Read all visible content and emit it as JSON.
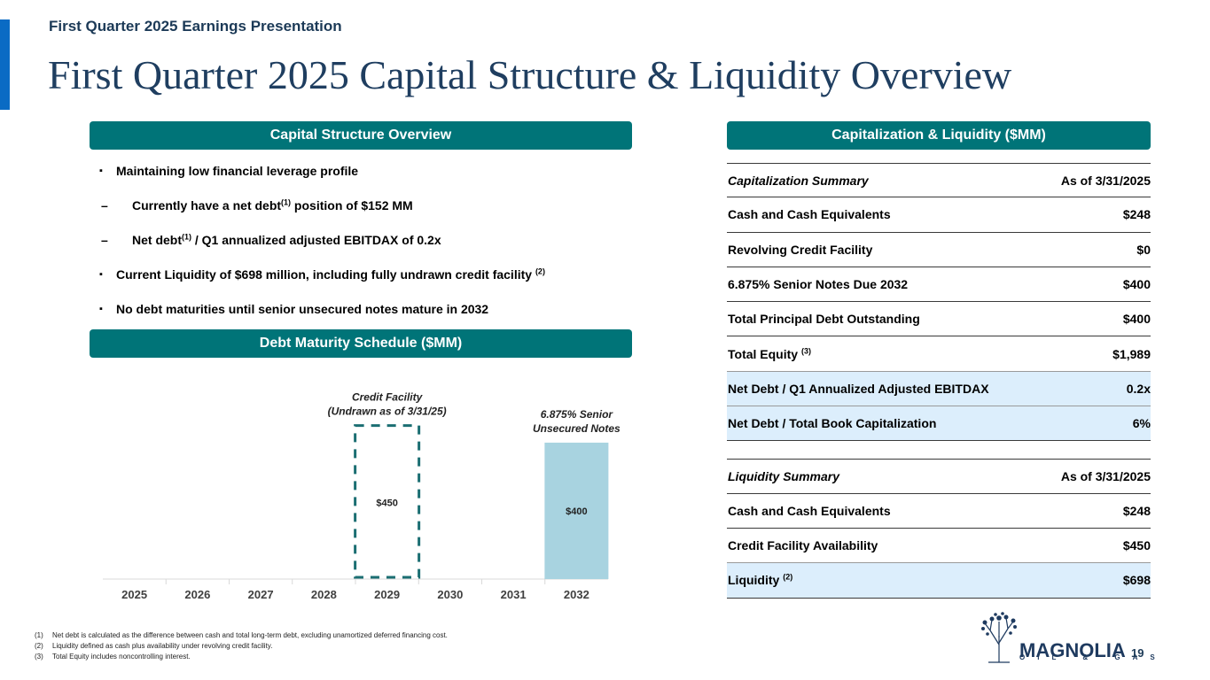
{
  "header": {
    "kicker": "First Quarter 2025 Earnings Presentation",
    "title": "First Quarter 2025 Capital Structure & Liquidity Overview"
  },
  "sections": {
    "capital_structure": "Capital Structure Overview",
    "debt_maturity": "Debt Maturity Schedule ($MM)",
    "cap_liquidity": "Capitalization & Liquidity ($MM)"
  },
  "bullets": {
    "b1": "Maintaining low financial leverage profile",
    "b2_pre": "Currently have a net debt",
    "b2_sup": "(1)",
    "b2_post": " position of $152 MM",
    "b3_pre": "Net debt",
    "b3_sup": "(1)",
    "b3_post": " / Q1 annualized adjusted EBITDAX of 0.2x",
    "b4_pre": "Current Liquidity of $698 million, including fully undrawn credit facility ",
    "b4_sup": "(2)",
    "b5": "No debt maturities until senior unsecured notes mature in 2032",
    "square_marker": "▪",
    "dash_marker": "–"
  },
  "chart_data": {
    "type": "bar",
    "categories": [
      "2025",
      "2026",
      "2027",
      "2028",
      "2029",
      "2030",
      "2031",
      "2032"
    ],
    "ylim": [
      0,
      500
    ],
    "series": [
      {
        "name": "Credit Facility (Undrawn as of 3/31/25)",
        "style": "dashed-outline",
        "values": [
          0,
          0,
          0,
          0,
          450,
          0,
          0,
          0
        ],
        "label": "$450"
      },
      {
        "name": "6.875% Senior Unsecured Notes",
        "style": "filled",
        "values": [
          0,
          0,
          0,
          0,
          0,
          0,
          0,
          400
        ],
        "label": "$400"
      }
    ],
    "annotations": {
      "credit_line1": "Credit Facility",
      "credit_line2": "(Undrawn as of 3/31/25)",
      "notes_line1": "6.875% Senior",
      "notes_line2": "Unsecured Notes"
    },
    "colors": {
      "filled": "#a8d3e0",
      "dashed": "#1b6e72",
      "axis": "#d9d9d9"
    }
  },
  "cap_table": {
    "cap_header": {
      "label": "Capitalization Summary",
      "value": "As of 3/31/2025"
    },
    "cap_rows": [
      {
        "label": "Cash and Cash Equivalents",
        "value": "$248"
      },
      {
        "label": "Revolving Credit Facility",
        "value": "$0"
      },
      {
        "label": "6.875% Senior Notes Due 2032",
        "value": "$400"
      },
      {
        "label": "Total Principal Debt Outstanding",
        "value": "$400"
      },
      {
        "label": "Total Equity",
        "sup": "(3)",
        "value": "$1,989"
      },
      {
        "label": "Net Debt / Q1 Annualized Adjusted EBITDAX",
        "value": "0.2x"
      },
      {
        "label": "Net Debt / Total Book Capitalization",
        "value": "6%"
      }
    ],
    "liq_header": {
      "label": "Liquidity Summary",
      "value": "As of 3/31/2025"
    },
    "liq_rows": [
      {
        "label": "Cash and Cash Equivalents",
        "value": "$248"
      },
      {
        "label": "Credit Facility Availability",
        "value": "$450"
      },
      {
        "label": "Liquidity",
        "sup": "(2)",
        "value": "$698"
      }
    ]
  },
  "footnotes": [
    {
      "num": "(1)",
      "text": "Net debt is calculated as the difference between cash and total long-term debt, excluding unamortized deferred financing cost."
    },
    {
      "num": "(2)",
      "text": "Liquidity defined as cash plus availability under revolving credit facility."
    },
    {
      "num": "(3)",
      "text": "Total Equity includes noncontrolling interest."
    }
  ],
  "page_number": "19",
  "logo": {
    "name": "MAGNOLIA",
    "sub": "OIL & GAS"
  },
  "colors": {
    "accent": "#0a6bc4",
    "section": "#007478",
    "title": "#1f3e60",
    "highlight": "#dceefc"
  }
}
